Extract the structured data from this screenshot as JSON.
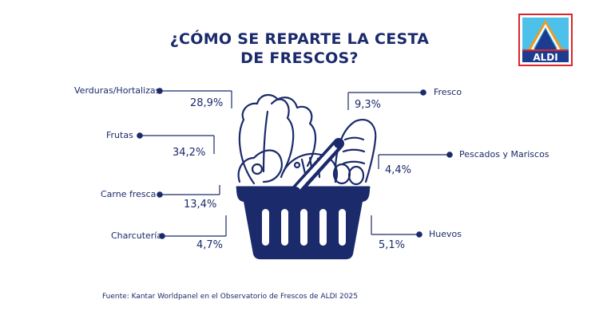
{
  "colors": {
    "primary": "#1b2a6b",
    "logo_red": "#d9262c",
    "logo_orange": "#f39a1e",
    "logo_light_blue": "#4ec1ea",
    "logo_dark_blue": "#1d3b8f"
  },
  "logo": {
    "text": "ALDI"
  },
  "source": "Fuente: Kantar Worldpanel en el Observatorio de Frescos de ALDI 2025",
  "chart_data": {
    "type": "pie",
    "title": "¿CÓMO SE REPARTE LA CESTA\nDE FRESCOS?",
    "title_lines": [
      "¿CÓMO SE REPARTE LA CESTA",
      "DE FRESCOS?"
    ],
    "unit": "%",
    "categories": [
      "Verduras/Hortalizas",
      "Frutas",
      "Carne fresca",
      "Charcutería",
      "Fresco",
      "Pescados y Mariscos",
      "Huevos"
    ],
    "values": [
      28.9,
      34.2,
      13.4,
      4.7,
      9.3,
      4.4,
      5.1
    ],
    "value_labels": [
      "28,9%",
      "34,2%",
      "13,4%",
      "4,7%",
      "9,3%",
      "4,4%",
      "5,1%"
    ]
  }
}
